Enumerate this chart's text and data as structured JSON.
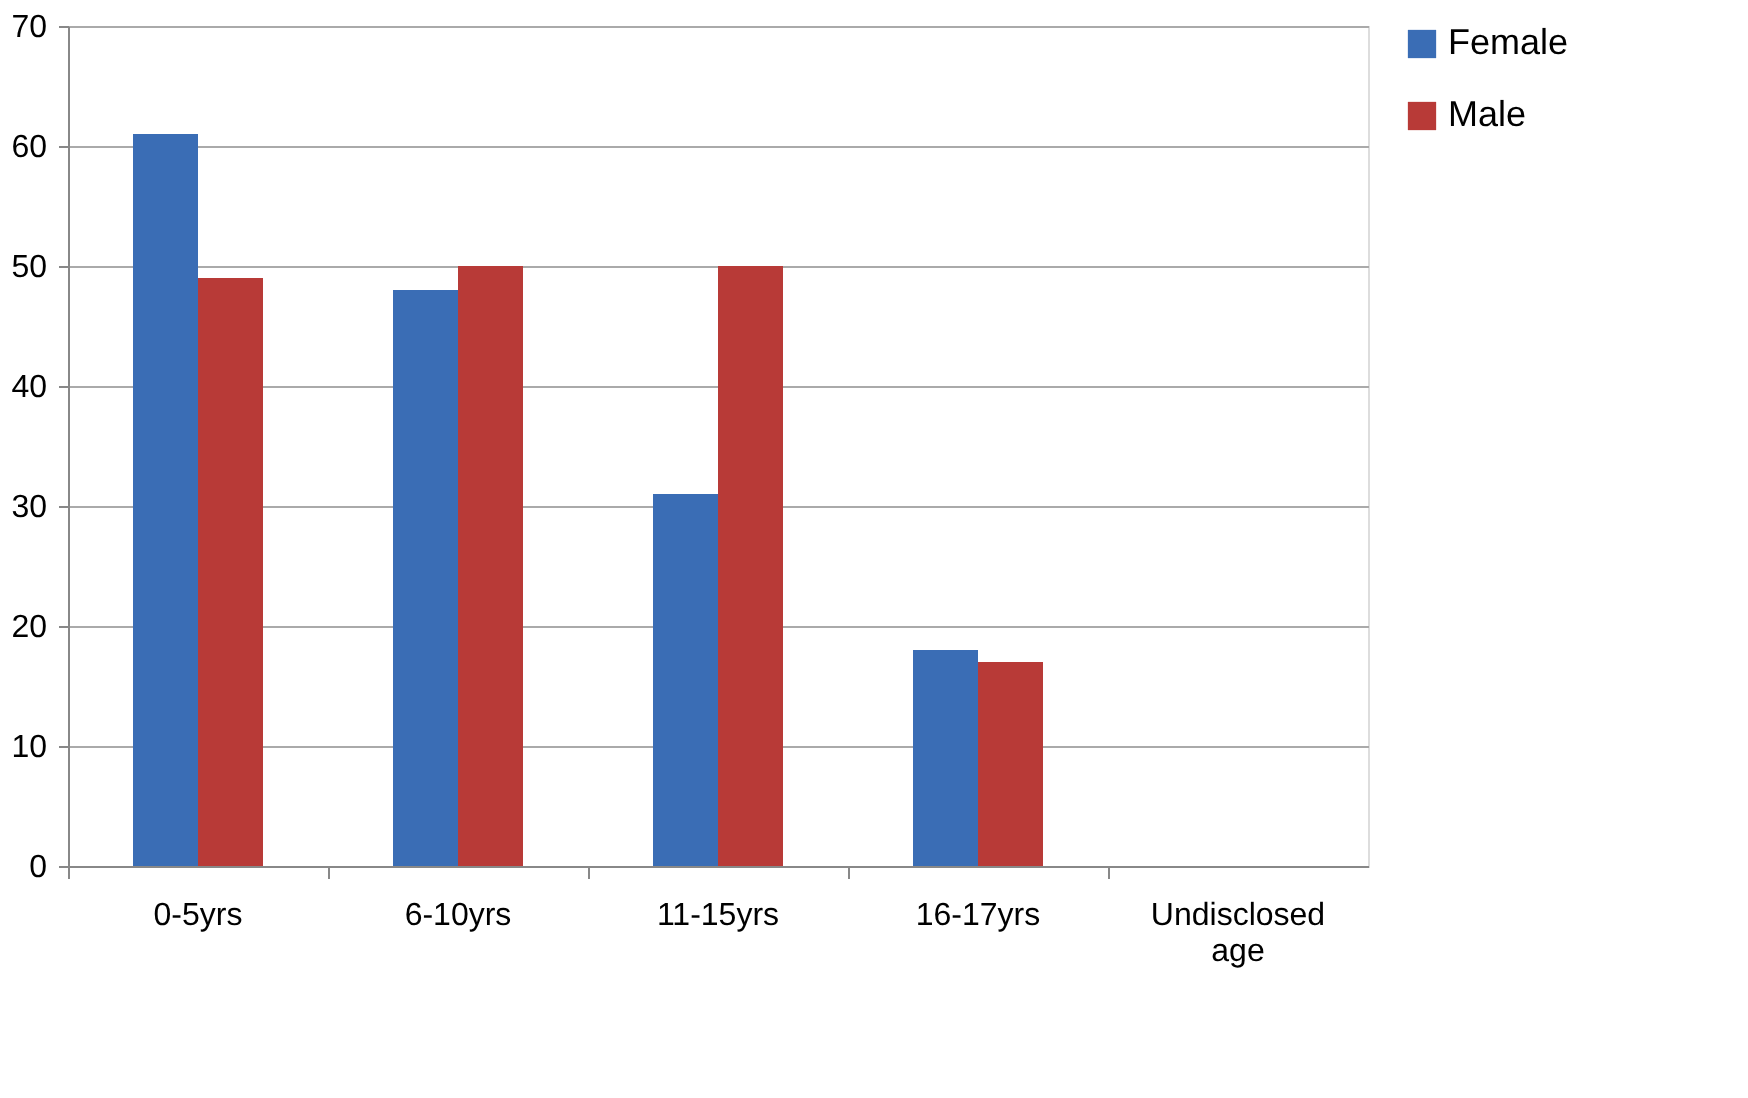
{
  "chart_data": {
    "type": "bar",
    "categories": [
      "0-5yrs",
      "6-10yrs",
      "11-15yrs",
      "16-17yrs",
      "Undisclosed age"
    ],
    "series": [
      {
        "name": "Female",
        "color": "#3a6db5",
        "values": [
          61,
          48,
          31,
          18,
          0
        ]
      },
      {
        "name": "Male",
        "color": "#b83a37",
        "values": [
          49,
          50,
          50,
          17,
          0
        ]
      }
    ],
    "ylim": [
      0,
      70
    ],
    "yticks": [
      0,
      10,
      20,
      30,
      40,
      50,
      60,
      70
    ],
    "grid": "y",
    "legend": "right"
  }
}
